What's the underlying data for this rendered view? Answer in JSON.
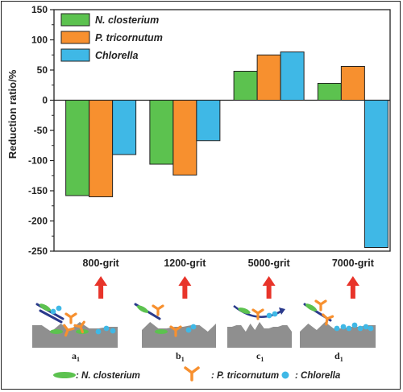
{
  "chart_data": {
    "type": "bar",
    "categories": [
      "800-grit",
      "1200-grit",
      "5000-grit",
      "7000-grit"
    ],
    "series": [
      {
        "name": "N. closterium",
        "values": [
          -158,
          -106,
          48,
          28
        ],
        "color": "#5cc24f"
      },
      {
        "name": "P. tricornutum",
        "values": [
          -160,
          -124,
          75,
          56
        ],
        "color": "#f7902f"
      },
      {
        "name": "Chlorella",
        "values": [
          -90,
          -67,
          80,
          -244
        ],
        "color": "#3fb8e6"
      }
    ],
    "title": "",
    "xlabel": "",
    "ylabel": "Reduction ratio/%",
    "ylim": [
      -250,
      150
    ],
    "yticks": [
      -250,
      -200,
      -150,
      -100,
      -50,
      0,
      50,
      100,
      150
    ],
    "grid": false,
    "legend_position": "top-left"
  },
  "schematic": {
    "panels": [
      {
        "label": "a",
        "sub": "1"
      },
      {
        "label": "b",
        "sub": "1"
      },
      {
        "label": "c",
        "sub": "1"
      },
      {
        "label": "d",
        "sub": "1"
      }
    ],
    "key": [
      {
        "icon": "green-ellipse-icon",
        "sep": ": ",
        "name": "N. closterium"
      },
      {
        "icon": "orange-y-icon",
        "sep": ": ",
        "name": "P. tricornutum"
      },
      {
        "icon": "blue-dot-icon",
        "sep": ": ",
        "name": "Chlorella"
      }
    ],
    "colors": {
      "arrow": "#e8342a",
      "substrate": "#8f8f8f",
      "rod": "#2a3a8c"
    }
  }
}
